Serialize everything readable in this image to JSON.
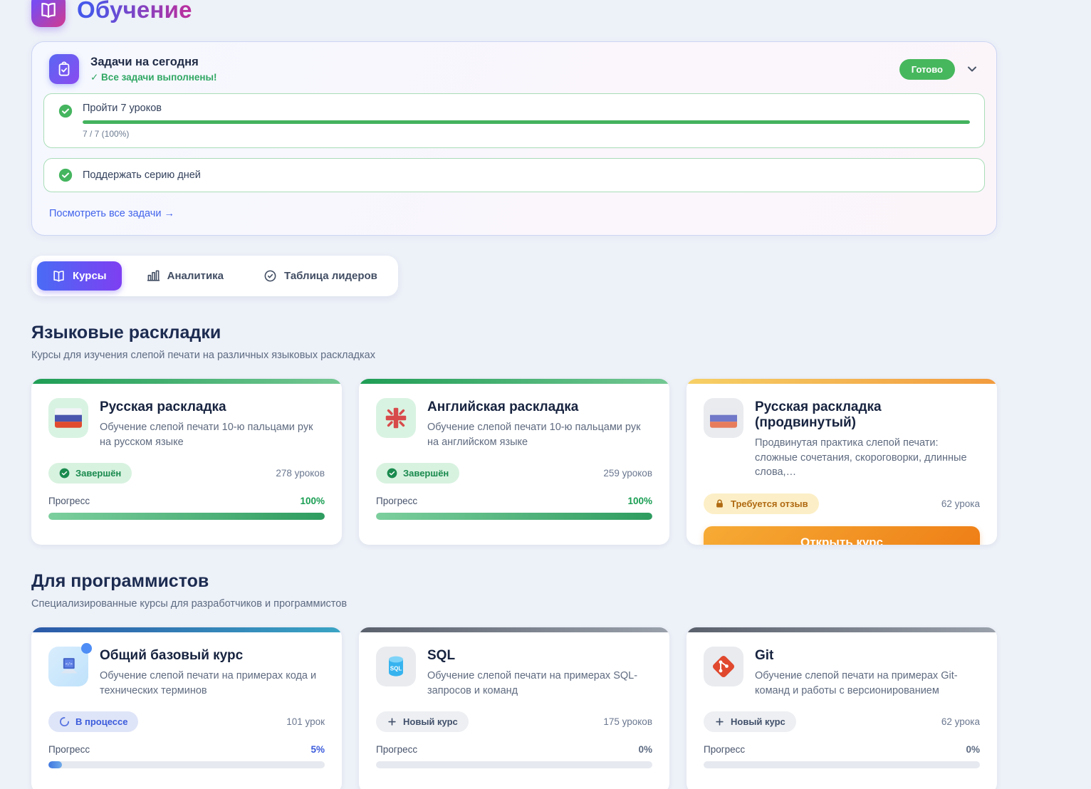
{
  "page": {
    "title": "Обучение"
  },
  "tasks_panel": {
    "title": "Задачи на сегодня",
    "subtitle": "✓ Все задачи выполнены!",
    "status_badge": "Готово",
    "items": [
      {
        "label": "Пройти 7 уроков",
        "bar_pct": 100,
        "caption": "7 / 7 (100%)"
      },
      {
        "label": "Поддержать серию дней"
      }
    ],
    "link": "Посмотреть все задачи →"
  },
  "tabs": [
    {
      "label": "Курсы",
      "icon": "book",
      "active": true
    },
    {
      "label": "Аналитика",
      "icon": "bar-chart",
      "active": false
    },
    {
      "label": "Таблица лидеров",
      "icon": "check-circle-outline",
      "active": false
    }
  ],
  "sections": [
    {
      "title": "Языковые раскладки",
      "subtitle": "Курсы для изучения слепой печати на различных языковых раскладках",
      "cards": [
        {
          "title": "Русская раскладка",
          "desc": "Обучение слепой печати 10-ю пальцами рук на русском языке",
          "icon": "ru-flag",
          "icon_bg": "green",
          "accent": "green",
          "badge": {
            "type": "done",
            "label": "Завершён"
          },
          "lessons": "278 уроков",
          "progress": {
            "label": "Прогресс",
            "value": "100%",
            "pct": 100,
            "color": "green"
          }
        },
        {
          "title": "Английская раскладка",
          "desc": "Обучение слепой печати 10-ю пальцами рук на английском языке",
          "icon": "en-cross",
          "icon_bg": "green",
          "accent": "green",
          "badge": {
            "type": "done",
            "label": "Завершён"
          },
          "lessons": "259 уроков",
          "progress": {
            "label": "Прогресс",
            "value": "100%",
            "pct": 100,
            "color": "green"
          }
        },
        {
          "title": "Русская раскладка (продвинутый)",
          "desc": "Продвинутая практика слепой печати: сложные сочетания, скороговорки, длинные слова,…",
          "icon": "ru-flag-muted",
          "icon_bg": "gray",
          "accent": "orange",
          "badge": {
            "type": "lock",
            "label": "Требуется отзыв"
          },
          "lessons": "62 урока",
          "button": "Открыть курс"
        }
      ]
    },
    {
      "title": "Для программистов",
      "subtitle": "Специализированные курсы для разработчиков и программистов",
      "cards": [
        {
          "title": "Общий базовый курс",
          "desc": "Обучение слепой печати на примерах кода и технических терминов",
          "icon": "computer",
          "icon_bg": "blue",
          "accent": "blue",
          "dot": true,
          "badge": {
            "type": "progress",
            "label": "В процессе"
          },
          "lessons": "101 урок",
          "progress": {
            "label": "Прогресс",
            "value": "5%",
            "pct": 5,
            "color": "blue"
          }
        },
        {
          "title": "SQL",
          "desc": "Обучение слепой печати на примерах SQL-запросов и команд",
          "icon": "sql-db",
          "icon_bg": "gray",
          "accent": "gray",
          "badge": {
            "type": "new",
            "label": "Новый курс"
          },
          "lessons": "175 уроков",
          "progress": {
            "label": "Прогресс",
            "value": "0%",
            "pct": 0,
            "color": "gray"
          }
        },
        {
          "title": "Git",
          "desc": "Обучение слепой печати на примерах Git-команд и работы с версионированием",
          "icon": "git",
          "icon_bg": "gray",
          "accent": "gray",
          "badge": {
            "type": "new",
            "label": "Новый курс"
          },
          "lessons": "62 урока",
          "progress": {
            "label": "Прогресс",
            "value": "0%",
            "pct": 0,
            "color": "gray"
          }
        }
      ]
    }
  ]
}
